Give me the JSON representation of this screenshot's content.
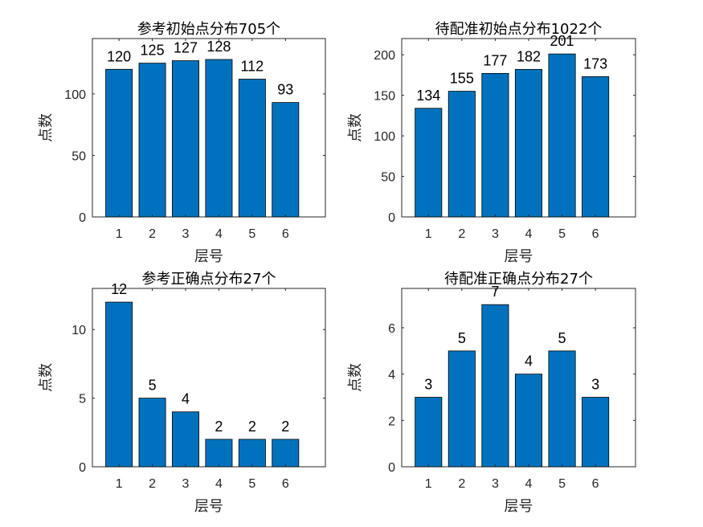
{
  "chart_data": [
    {
      "type": "bar",
      "title": "参考初始点分布705个",
      "xlabel": "层号",
      "ylabel": "点数",
      "categories": [
        "1",
        "2",
        "3",
        "4",
        "5",
        "6"
      ],
      "values": [
        120,
        125,
        127,
        128,
        112,
        93
      ],
      "xlim": [
        0.2,
        7.2
      ],
      "ylim": [
        0,
        145
      ],
      "yticks": [
        0,
        50,
        100
      ]
    },
    {
      "type": "bar",
      "title": "待配准初始点分布1022个",
      "xlabel": "层号",
      "ylabel": "点数",
      "categories": [
        "1",
        "2",
        "3",
        "4",
        "5",
        "6"
      ],
      "values": [
        134,
        155,
        177,
        182,
        201,
        173
      ],
      "xlim": [
        0.2,
        7.2
      ],
      "ylim": [
        0,
        220
      ],
      "yticks": [
        0,
        50,
        100,
        150,
        200
      ]
    },
    {
      "type": "bar",
      "title": "参考正确点分布27个",
      "xlabel": "层号",
      "ylabel": "点数",
      "categories": [
        "1",
        "2",
        "3",
        "4",
        "5",
        "6"
      ],
      "values": [
        12,
        5,
        4,
        2,
        2,
        2
      ],
      "xlim": [
        0.2,
        7.2
      ],
      "ylim": [
        0,
        13
      ],
      "yticks": [
        0,
        5,
        10
      ]
    },
    {
      "type": "bar",
      "title": "待配准正确点分布27个",
      "xlabel": "层号",
      "ylabel": "点数",
      "categories": [
        "1",
        "2",
        "3",
        "4",
        "5",
        "6"
      ],
      "values": [
        3,
        5,
        7,
        4,
        5,
        3
      ],
      "xlim": [
        0.2,
        7.2
      ],
      "ylim": [
        0,
        7.7
      ],
      "yticks": [
        0,
        2,
        4,
        6
      ]
    }
  ],
  "colors": {
    "bar": "#0072BD",
    "axis": "#262626",
    "text": "#000000"
  }
}
